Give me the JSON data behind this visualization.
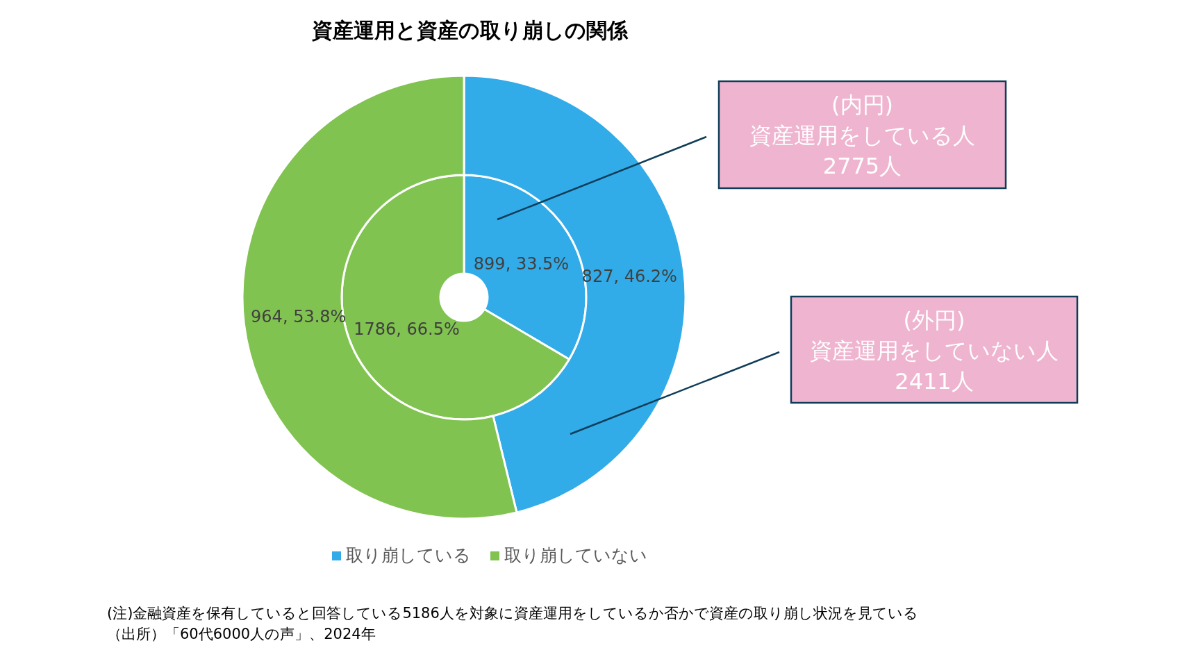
{
  "chart_data": {
    "type": "donut",
    "title": "資産運用と資産の取り崩しの関係",
    "categories": [
      "取り崩している",
      "取り崩していない"
    ],
    "series": [
      {
        "values": [
          899,
          1786
        ],
        "colors": [
          "#32abe9",
          "#80c350"
        ],
        "value_labels": [
          "899, 33.5%",
          "1786, 66.5%"
        ]
      },
      {
        "values": [
          827,
          964
        ],
        "colors": [
          "#32abe9",
          "#80c350"
        ],
        "value_labels": [
          "827, 46.2%",
          "964, 53.8%"
        ]
      }
    ],
    "legend": "bottom",
    "annotations": [
      "(内円)\n資産運用をしている人\n2775人",
      "(外円)\n資産運用をしていない人\n2411人",
      "(注)金融資産を保有していると回答している5186人を対象に資産運用をしているか否かで資産の取り崩し状況を見ている",
      "（出所）「60代6000人の声」、2024年"
    ]
  }
}
